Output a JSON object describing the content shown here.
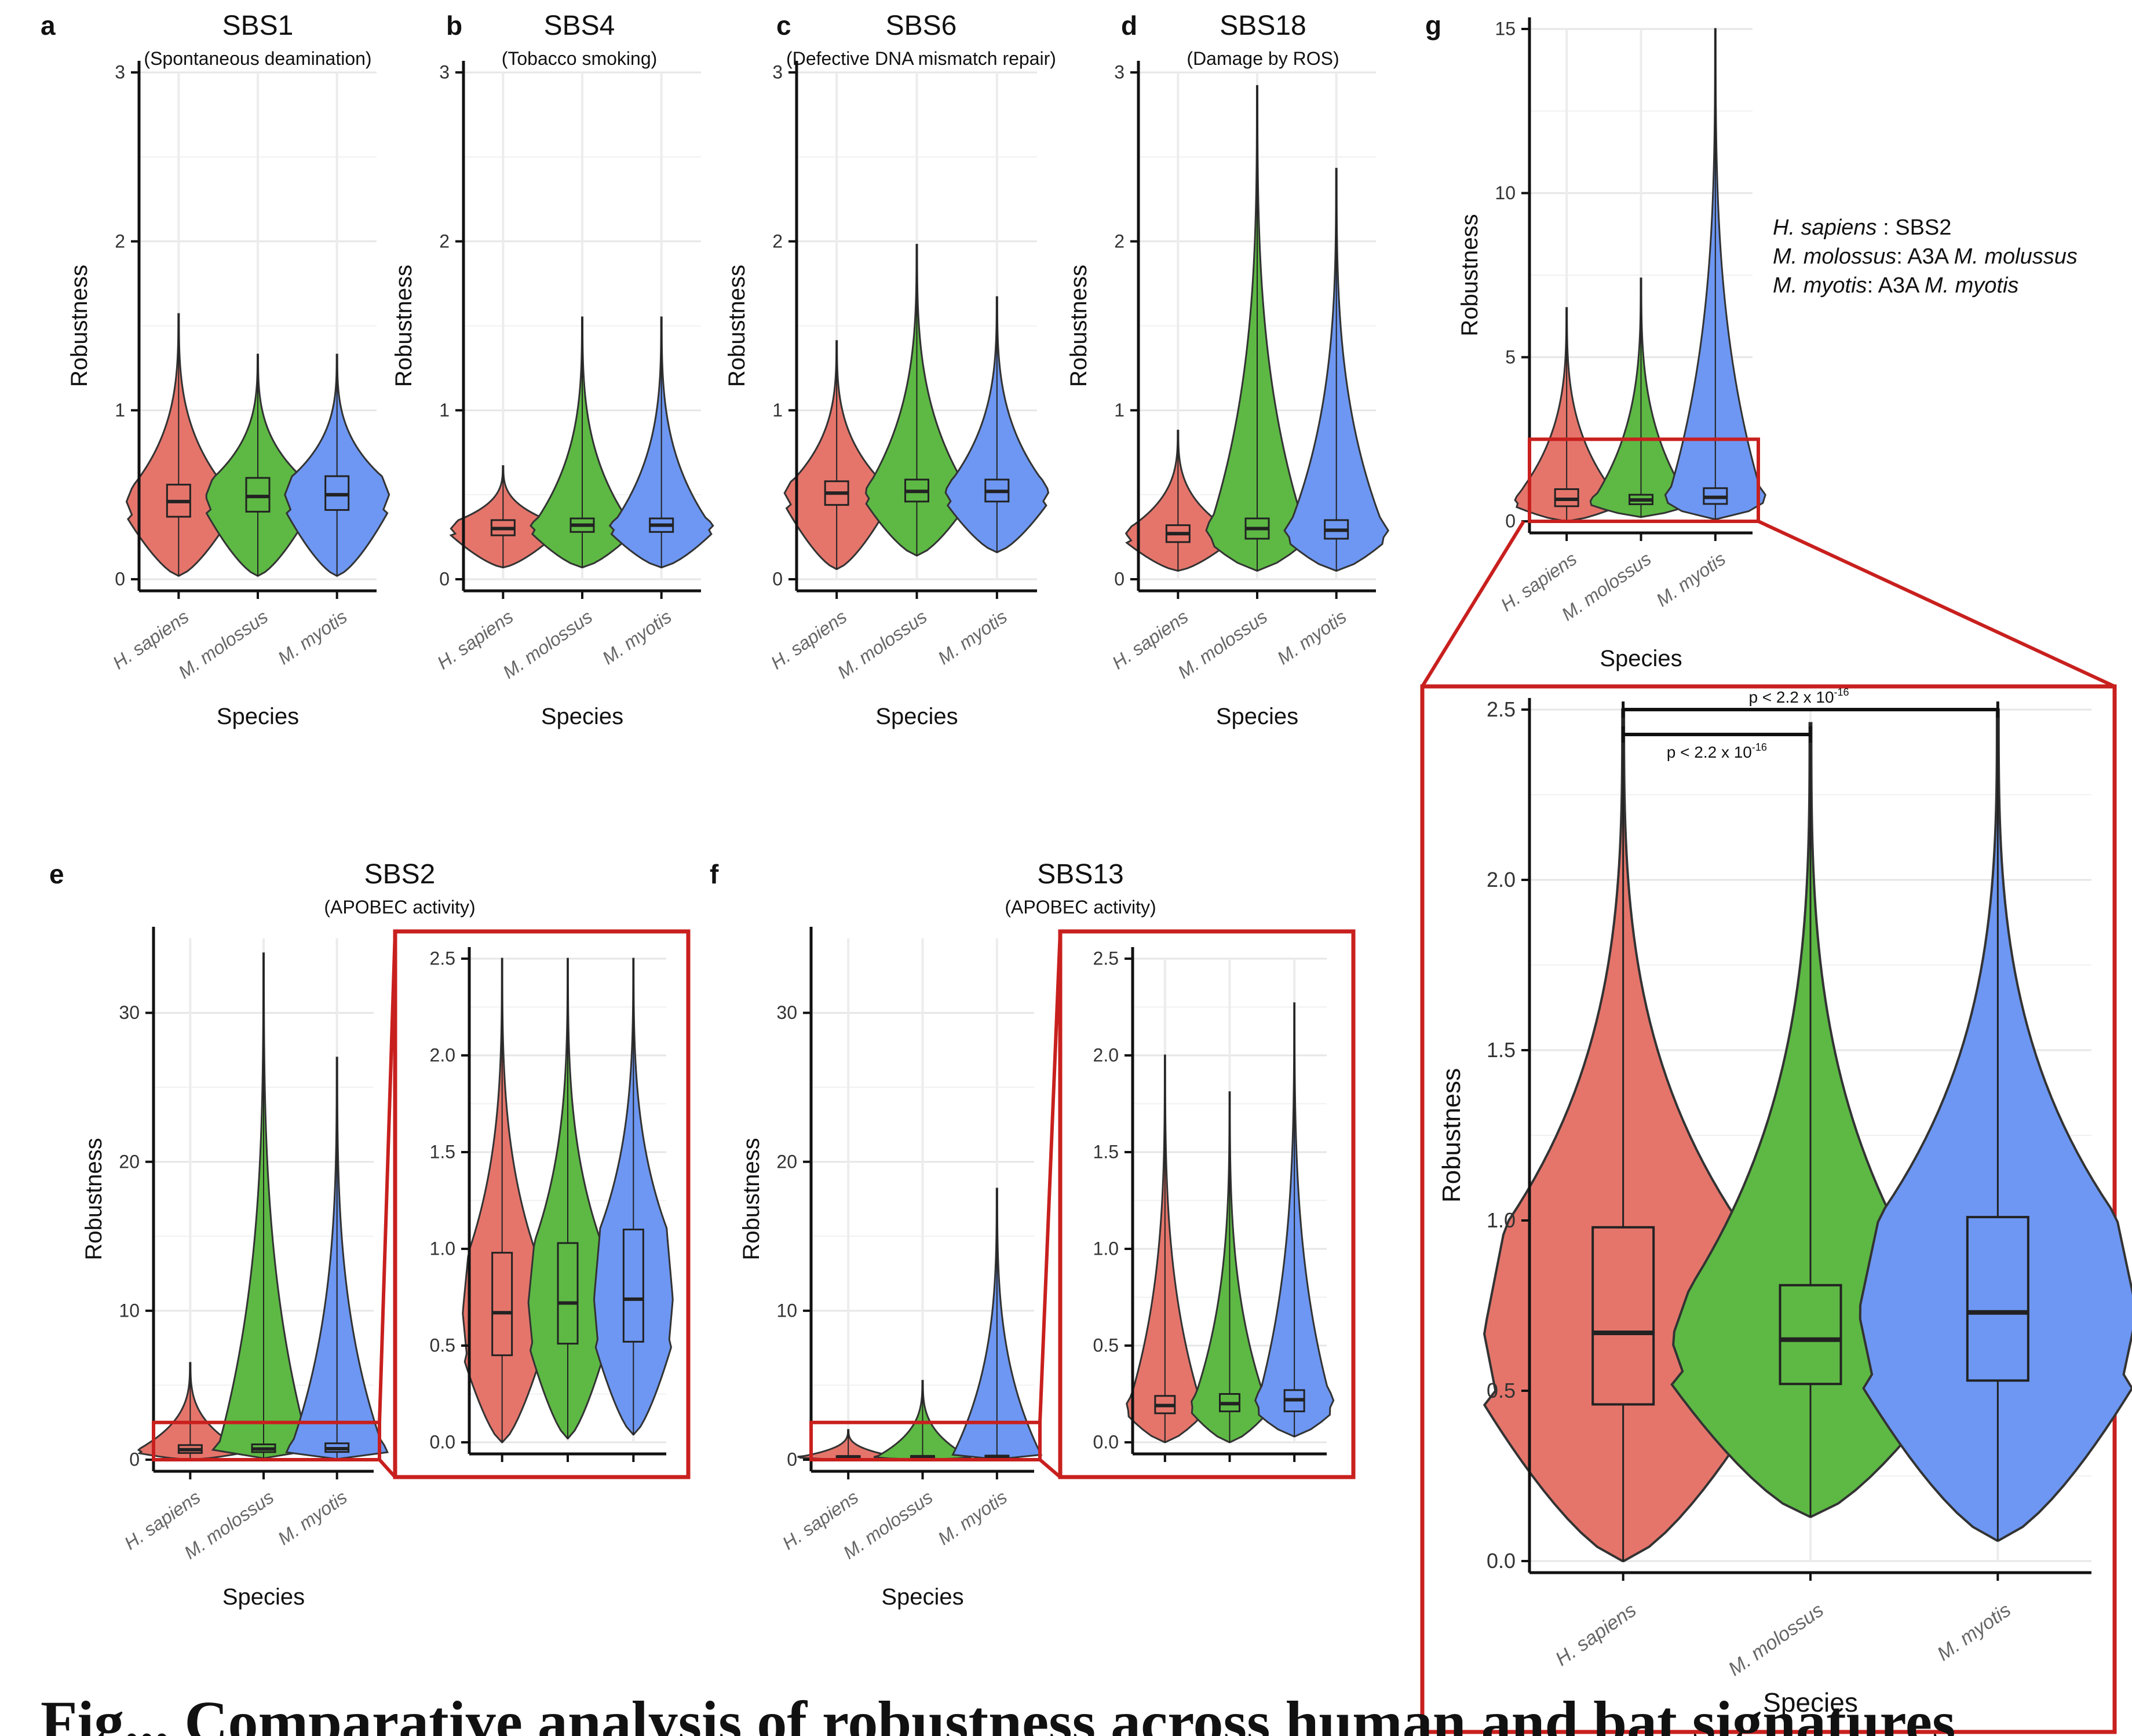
{
  "figure": {
    "species": [
      "H. sapiens",
      "M. molossus",
      "M. myotis"
    ],
    "species_colors": [
      "#E5756B",
      "#5DB944",
      "#6D97F2"
    ],
    "zoom_box_color": "#C8201E",
    "axis_ylabel": "Robustness",
    "axis_xlabel": "Species",
    "legend_g": [
      {
        "italic": "H. sapiens",
        "rest": " : SBS2"
      },
      {
        "italic": "M. molossus",
        "rest": ": A3A ",
        "italic2": "M. molussus"
      },
      {
        "italic": "M. myotis",
        "rest": ": A3A ",
        "italic2": "M. myotis"
      }
    ],
    "pvalue_1": "p < 2.2 x 10",
    "pvalue_2": "p < 2.2 x 10",
    "pvalue_exp": "-16",
    "caption_fragment": "Fig... Comparative analysis of robustness across human and bat signatures"
  },
  "chart_data": [
    {
      "panel": "a",
      "type": "violin",
      "title": "SBS1",
      "subtitle": "(Spontaneous deamination)",
      "xlabel": "Species",
      "ylabel": "Robustness",
      "ylim": [
        0,
        3
      ],
      "yticks": [
        "0",
        "1",
        "2",
        "3"
      ],
      "categories": [
        "H. sapiens",
        "M. molossus",
        "M. myotis"
      ],
      "series": [
        {
          "name": "H. sapiens",
          "min": 0.02,
          "q1": 0.37,
          "median": 0.46,
          "q3": 0.56,
          "max": 1.57
        },
        {
          "name": "M. molossus",
          "min": 0.02,
          "q1": 0.4,
          "median": 0.49,
          "q3": 0.6,
          "max": 1.33
        },
        {
          "name": "M. myotis",
          "min": 0.02,
          "q1": 0.41,
          "median": 0.5,
          "q3": 0.61,
          "max": 1.33
        }
      ]
    },
    {
      "panel": "b",
      "type": "violin",
      "title": "SBS4",
      "subtitle": "(Tobacco smoking)",
      "xlabel": "Species",
      "ylabel": "Robustness",
      "ylim": [
        0,
        3
      ],
      "yticks": [
        "0",
        "1",
        "2",
        "3"
      ],
      "categories": [
        "H. sapiens",
        "M. molossus",
        "M. myotis"
      ],
      "series": [
        {
          "name": "H. sapiens",
          "min": 0.07,
          "q1": 0.26,
          "median": 0.3,
          "q3": 0.35,
          "max": 0.67
        },
        {
          "name": "M. molossus",
          "min": 0.07,
          "q1": 0.28,
          "median": 0.32,
          "q3": 0.36,
          "max": 1.55
        },
        {
          "name": "M. myotis",
          "min": 0.07,
          "q1": 0.28,
          "median": 0.32,
          "q3": 0.36,
          "max": 1.55
        }
      ]
    },
    {
      "panel": "c",
      "type": "violin",
      "title": "SBS6",
      "subtitle": "(Defective DNA mismatch repair)",
      "xlabel": "Species",
      "ylabel": "Robustness",
      "ylim": [
        0,
        3
      ],
      "yticks": [
        "0",
        "1",
        "2",
        "3"
      ],
      "categories": [
        "H. sapiens",
        "M. molossus",
        "M. myotis"
      ],
      "series": [
        {
          "name": "H. sapiens",
          "min": 0.06,
          "q1": 0.44,
          "median": 0.51,
          "q3": 0.58,
          "max": 1.41
        },
        {
          "name": "M. molossus",
          "min": 0.14,
          "q1": 0.46,
          "median": 0.52,
          "q3": 0.59,
          "max": 1.98
        },
        {
          "name": "M. myotis",
          "min": 0.16,
          "q1": 0.46,
          "median": 0.52,
          "q3": 0.59,
          "max": 1.67
        }
      ]
    },
    {
      "panel": "d",
      "type": "violin",
      "title": "SBS18",
      "subtitle": "(Damage by ROS)",
      "xlabel": "Species",
      "ylabel": "Robustness",
      "ylim": [
        0,
        3
      ],
      "yticks": [
        "0",
        "1",
        "2",
        "3"
      ],
      "categories": [
        "H. sapiens",
        "M. molossus",
        "M. myotis"
      ],
      "series": [
        {
          "name": "H. sapiens",
          "min": 0.05,
          "q1": 0.22,
          "median": 0.27,
          "q3": 0.32,
          "max": 0.88
        },
        {
          "name": "M. molossus",
          "min": 0.05,
          "q1": 0.24,
          "median": 0.3,
          "q3": 0.36,
          "max": 2.92
        },
        {
          "name": "M. myotis",
          "min": 0.05,
          "q1": 0.24,
          "median": 0.29,
          "q3": 0.35,
          "max": 2.43
        }
      ]
    },
    {
      "panel": "e",
      "type": "violin",
      "title": "SBS2",
      "subtitle": "(APOBEC activity)",
      "xlabel": "Species",
      "ylabel": "Robustness",
      "ylim": [
        0,
        35
      ],
      "yticks": [
        "0",
        "10",
        "20",
        "30"
      ],
      "categories": [
        "H. sapiens",
        "M. molossus",
        "M. myotis"
      ],
      "series": [
        {
          "name": "H. sapiens",
          "min": 0.0,
          "q1": 0.45,
          "median": 0.67,
          "q3": 0.98,
          "max": 6.5
        },
        {
          "name": "M. molossus",
          "min": 0.1,
          "q1": 0.51,
          "median": 0.72,
          "q3": 1.03,
          "max": 34.0
        },
        {
          "name": "M. myotis",
          "min": 0.05,
          "q1": 0.52,
          "median": 0.74,
          "q3": 1.1,
          "max": 27.0
        }
      ],
      "inset": {
        "ylim": [
          0,
          2.5
        ],
        "yticks": [
          "0.0",
          "0.5",
          "1.0",
          "1.5",
          "2.0",
          "2.5"
        ],
        "series": [
          {
            "name": "H. sapiens",
            "min": 0.0,
            "q1": 0.45,
            "median": 0.67,
            "q3": 0.98,
            "max": 2.5
          },
          {
            "name": "M. molossus",
            "min": 0.02,
            "q1": 0.51,
            "median": 0.72,
            "q3": 1.03,
            "max": 2.5
          },
          {
            "name": "M. myotis",
            "min": 0.04,
            "q1": 0.52,
            "median": 0.74,
            "q3": 1.1,
            "max": 2.5
          }
        ]
      }
    },
    {
      "panel": "f",
      "type": "violin",
      "title": "SBS13",
      "subtitle": "(APOBEC activity)",
      "xlabel": "Species",
      "ylabel": "Robustness",
      "ylim": [
        0,
        35
      ],
      "yticks": [
        "0",
        "10",
        "20",
        "30"
      ],
      "categories": [
        "H. sapiens",
        "M. molossus",
        "M. myotis"
      ],
      "series": [
        {
          "name": "H. sapiens",
          "min": 0.0,
          "q1": 0.15,
          "median": 0.19,
          "q3": 0.24,
          "max": 2.0
        },
        {
          "name": "M. molossus",
          "min": 0.0,
          "q1": 0.16,
          "median": 0.2,
          "q3": 0.25,
          "max": 5.3
        },
        {
          "name": "M. myotis",
          "min": 0.03,
          "q1": 0.16,
          "median": 0.22,
          "q3": 0.27,
          "max": 18.2
        }
      ],
      "inset": {
        "ylim": [
          0,
          2.5
        ],
        "yticks": [
          "0.0",
          "0.5",
          "1.0",
          "1.5",
          "2.0",
          "2.5"
        ],
        "series": [
          {
            "name": "H. sapiens",
            "min": 0.0,
            "q1": 0.15,
            "median": 0.19,
            "q3": 0.24,
            "max": 2.0
          },
          {
            "name": "M. molossus",
            "min": 0.0,
            "q1": 0.16,
            "median": 0.2,
            "q3": 0.25,
            "max": 1.81
          },
          {
            "name": "M. myotis",
            "min": 0.03,
            "q1": 0.16,
            "median": 0.22,
            "q3": 0.27,
            "max": 2.27
          }
        ]
      }
    },
    {
      "panel": "g",
      "type": "violin",
      "title": "",
      "subtitle": "",
      "xlabel": "Species",
      "ylabel": "Robustness",
      "ylim": [
        0,
        15
      ],
      "yticks": [
        "0",
        "5",
        "10",
        "15"
      ],
      "categories": [
        "H. sapiens",
        "M. molossus",
        "M. myotis"
      ],
      "series": [
        {
          "name": "H. sapiens",
          "min": 0.0,
          "q1": 0.46,
          "median": 0.67,
          "q3": 0.98,
          "max": 6.5
        },
        {
          "name": "M. molossus",
          "min": 0.13,
          "q1": 0.52,
          "median": 0.65,
          "q3": 0.81,
          "max": 7.4
        },
        {
          "name": "M. myotis",
          "min": 0.06,
          "q1": 0.53,
          "median": 0.73,
          "q3": 1.01,
          "max": 15.0
        }
      ],
      "inset": {
        "ylim": [
          0,
          2.5
        ],
        "yticks": [
          "0.0",
          "0.5",
          "1.0",
          "1.5",
          "2.0",
          "2.5"
        ],
        "series": [
          {
            "name": "H. sapiens",
            "min": 0.0,
            "q1": 0.46,
            "median": 0.67,
            "q3": 0.98,
            "max": 2.5
          },
          {
            "name": "M. molossus",
            "min": 0.13,
            "q1": 0.52,
            "median": 0.65,
            "q3": 0.81,
            "max": 2.46
          },
          {
            "name": "M. myotis",
            "min": 0.06,
            "q1": 0.53,
            "median": 0.73,
            "q3": 1.01,
            "max": 2.5
          }
        ],
        "comparisons": [
          {
            "from": "H. sapiens",
            "to": "M. myotis",
            "label": "p < 2.2 x 10-16"
          },
          {
            "from": "H. sapiens",
            "to": "M. molossus",
            "label": "p < 2.2 x 10-16"
          }
        ]
      }
    }
  ]
}
